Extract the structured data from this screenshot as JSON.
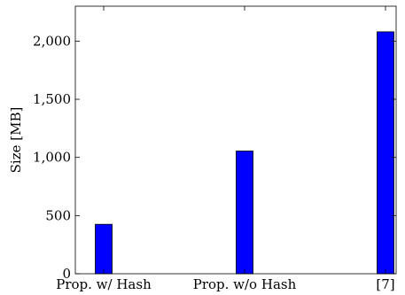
{
  "chart_data": {
    "type": "bar",
    "categories": [
      "Prop. w/ Hash",
      "Prop. w/o Hash",
      "[7]"
    ],
    "values": [
      425,
      1055,
      2080
    ],
    "title": "",
    "xlabel": "",
    "ylabel": "Size [MB]",
    "ylim": [
      0,
      2300
    ],
    "yticks": [
      0,
      500,
      1000,
      1500,
      2000
    ],
    "ytick_labels": [
      "0",
      "500",
      "1,000",
      "1,500",
      "2,000"
    ],
    "grid": false,
    "bar_color": "#0000ff",
    "bar_edge_color": "#000000"
  }
}
